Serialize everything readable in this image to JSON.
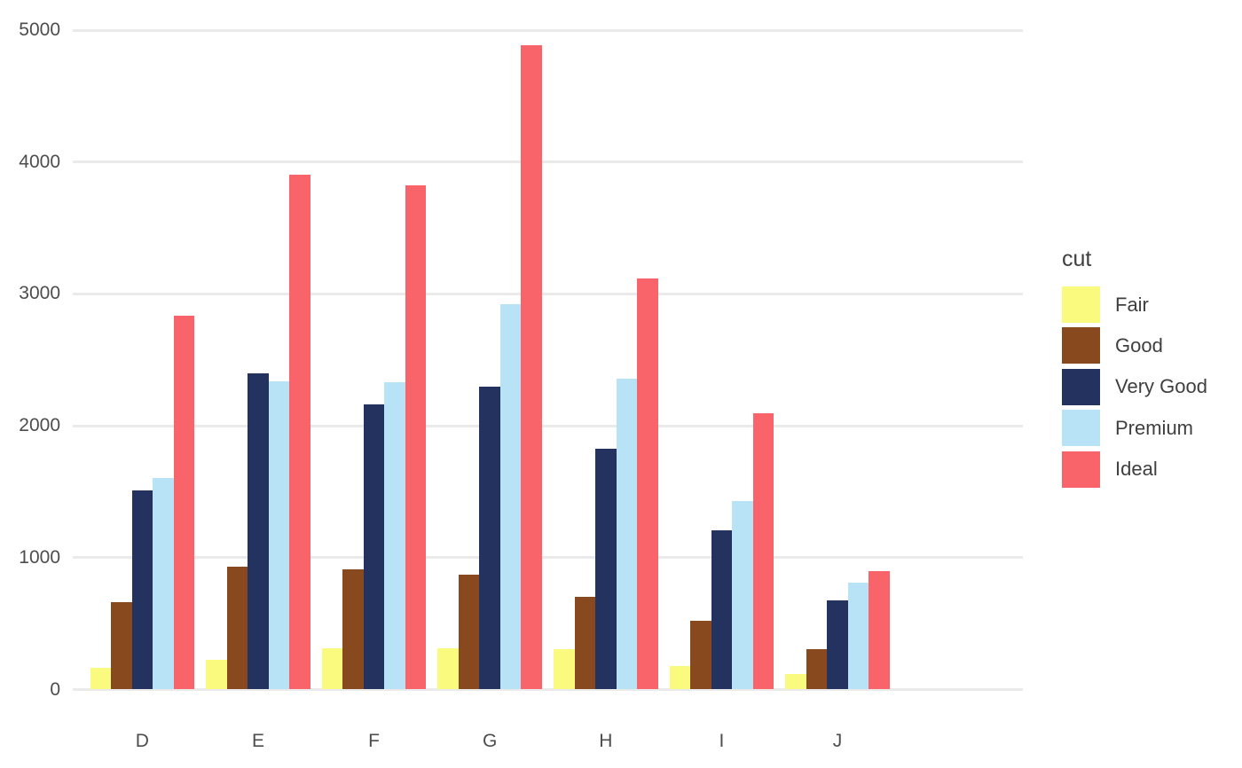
{
  "colors": {
    "background": "#FFFFFF",
    "grid": "#EAEAEA",
    "axis_text": "#4D4D4D",
    "legend_text": "#3F3F3F"
  },
  "chart_data": {
    "type": "bar",
    "mode": "grouped",
    "title": "",
    "categories": [
      "D",
      "E",
      "F",
      "G",
      "H",
      "I",
      "J"
    ],
    "series": [
      {
        "name": "Fair",
        "color": "#F9FA7E",
        "values": [
          163,
          224,
          312,
          314,
          303,
          175,
          119
        ]
      },
      {
        "name": "Good",
        "color": "#87491D",
        "values": [
          662,
          933,
          909,
          871,
          702,
          522,
          307
        ]
      },
      {
        "name": "Very Good",
        "color": "#243260",
        "values": [
          1513,
          2400,
          2164,
          2299,
          1824,
          1204,
          678
        ]
      },
      {
        "name": "Premium",
        "color": "#B8E2F6",
        "values": [
          1603,
          2337,
          2331,
          2924,
          2360,
          1428,
          808
        ]
      },
      {
        "name": "Ideal",
        "color": "#F9646A",
        "values": [
          2834,
          3903,
          3826,
          4884,
          3115,
          2093,
          896
        ]
      }
    ],
    "legend": {
      "title": "cut",
      "position": "right",
      "entries": [
        "Fair",
        "Good",
        "Very Good",
        "Premium",
        "Ideal"
      ]
    },
    "y_axis": {
      "label": "",
      "tick_labels": [
        "0",
        "1000",
        "2000",
        "3000",
        "4000",
        "5000"
      ],
      "tick_values": [
        0,
        1000,
        2000,
        3000,
        4000,
        5000
      ],
      "range": [
        0,
        5000
      ],
      "grid": true
    },
    "x_axis": {
      "label": ""
    }
  }
}
